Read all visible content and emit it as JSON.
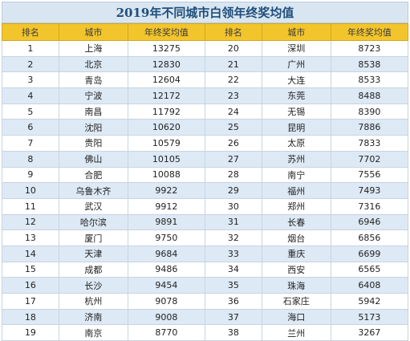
{
  "title": "2019年不同城市白领年终奖均值",
  "headers": [
    "排名",
    "城市",
    "年终奖均值",
    "排名",
    "城市",
    "年终奖均值"
  ],
  "rows": [
    [
      [
        "1",
        "上海",
        "13275"
      ],
      [
        "20",
        "深圳",
        "8723"
      ]
    ],
    [
      [
        "2",
        "北京",
        "12830"
      ],
      [
        "21",
        "广州",
        "8538"
      ]
    ],
    [
      [
        "3",
        "青岛",
        "12604"
      ],
      [
        "22",
        "大连",
        "8533"
      ]
    ],
    [
      [
        "4",
        "宁波",
        "12172"
      ],
      [
        "23",
        "东莞",
        "8488"
      ]
    ],
    [
      [
        "5",
        "南昌",
        "11792"
      ],
      [
        "24",
        "无锡",
        "8390"
      ]
    ],
    [
      [
        "6",
        "沈阳",
        "10620"
      ],
      [
        "25",
        "昆明",
        "7886"
      ]
    ],
    [
      [
        "7",
        "贵阳",
        "10579"
      ],
      [
        "26",
        "太原",
        "7833"
      ]
    ],
    [
      [
        "8",
        "佛山",
        "10105"
      ],
      [
        "27",
        "苏州",
        "7702"
      ]
    ],
    [
      [
        "9",
        "合肥",
        "10088"
      ],
      [
        "28",
        "南宁",
        "7556"
      ]
    ],
    [
      [
        "10",
        "乌鲁木齐",
        "9922"
      ],
      [
        "29",
        "福州",
        "7493"
      ]
    ],
    [
      [
        "11",
        "武汉",
        "9912"
      ],
      [
        "30",
        "郑州",
        "7316"
      ]
    ],
    [
      [
        "12",
        "哈尔滨",
        "9891"
      ],
      [
        "31",
        "长春",
        "6946"
      ]
    ],
    [
      [
        "13",
        "厦门",
        "9750"
      ],
      [
        "32",
        "烟台",
        "6856"
      ]
    ],
    [
      [
        "14",
        "天津",
        "9684"
      ],
      [
        "33",
        "重庆",
        "6699"
      ]
    ],
    [
      [
        "15",
        "成都",
        "9486"
      ],
      [
        "34",
        "西安",
        "6565"
      ]
    ],
    [
      [
        "16",
        "长沙",
        "9454"
      ],
      [
        "35",
        "珠海",
        "6408"
      ]
    ],
    [
      [
        "17",
        "杭州",
        "9078"
      ],
      [
        "36",
        "石家庄",
        "5942"
      ]
    ],
    [
      [
        "18",
        "济南",
        "9008"
      ],
      [
        "37",
        "海口",
        "5173"
      ]
    ],
    [
      [
        "19",
        "南京",
        "8770"
      ],
      [
        "38",
        "兰州",
        "3267"
      ]
    ]
  ]
}
